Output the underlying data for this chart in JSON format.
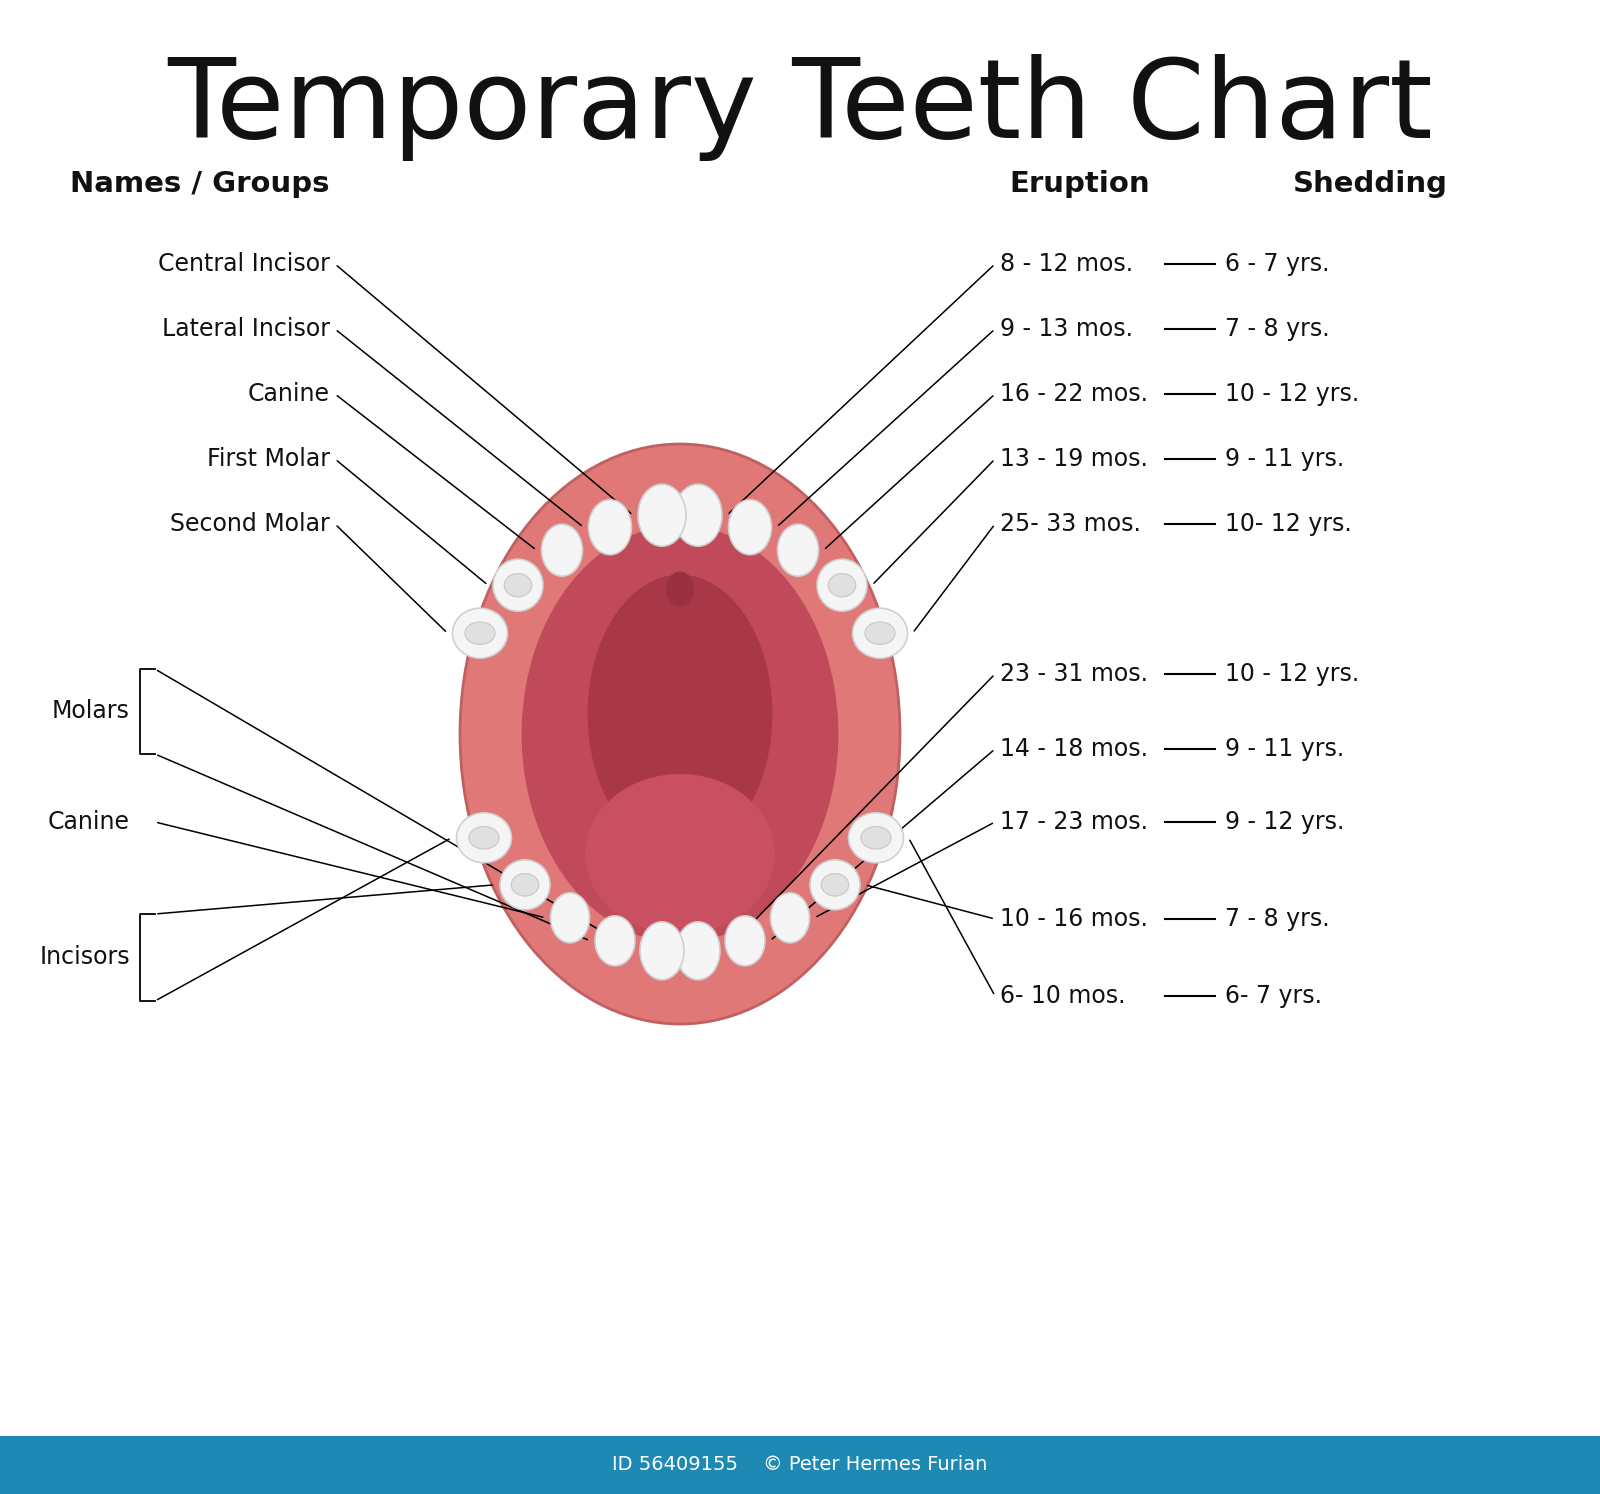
{
  "title": "Temporary Teeth Chart",
  "title_fontsize": 80,
  "header_names_groups": "Names / Groups",
  "header_eruption": "Eruption",
  "header_shedding": "Shedding",
  "header_fontsize": 21,
  "bg_color": "#ffffff",
  "upper_teeth": [
    {
      "name": "Central Incisor",
      "eruption": "8 - 12 mos.",
      "shedding": "6 - 7 yrs."
    },
    {
      "name": "Lateral Incisor",
      "eruption": "9 - 13 mos.",
      "shedding": "7 - 8 yrs."
    },
    {
      "name": "Canine",
      "eruption": "16 - 22 mos.",
      "shedding": "10 - 12 yrs."
    },
    {
      "name": "First Molar",
      "eruption": "13 - 19 mos.",
      "shedding": "9 - 11 yrs."
    },
    {
      "name": "Second Molar",
      "eruption": "25- 33 mos.",
      "shedding": "10- 12 yrs."
    }
  ],
  "lower_teeth": [
    {
      "name": "Molars",
      "eruption": "23 - 31 mos.",
      "shedding": "10 - 12 yrs."
    },
    {
      "name": "",
      "eruption": "14 - 18 mos.",
      "shedding": "9 - 11 yrs."
    },
    {
      "name": "Canine",
      "eruption": "17 - 23 mos.",
      "shedding": "9 - 12 yrs."
    },
    {
      "name": "Incisors",
      "eruption": "10 - 16 mos.",
      "shedding": "7 - 8 yrs."
    },
    {
      "name": "",
      "eruption": "6- 10 mos.",
      "shedding": "6- 7 yrs."
    }
  ],
  "gum_outer_color": "#e07878",
  "gum_mid_color": "#d06060",
  "gum_inner_color": "#c04a5a",
  "gum_throat_color": "#a83848",
  "tongue_color": "#c85060",
  "tooth_color": "#f5f5f5",
  "tooth_edge_color": "#d0d0d0",
  "label_fontsize": 17,
  "data_fontsize": 17,
  "footer_text": "© Peter Hermes Furian",
  "footer_id": "ID 56409155",
  "footer_color": "#ffffff",
  "footer_bg": "#1e8ab4"
}
